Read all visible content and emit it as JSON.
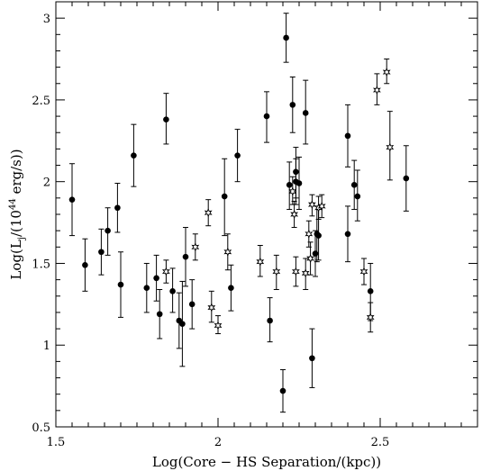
{
  "chart_data": {
    "type": "scatter",
    "xlabel": "Log(Core − HS Separation/(kpc))",
    "ylabel_prefix": "Log(L",
    "ylabel_sub": "j",
    "ylabel_mid": "/(10",
    "ylabel_sup": "44",
    "ylabel_suffix": " erg/s))",
    "xlim": [
      1.5,
      2.8
    ],
    "ylim": [
      0.5,
      3.1
    ],
    "x_ticks": [
      1.5,
      2,
      2.5
    ],
    "x_tick_labels": [
      "1.5",
      "2",
      "2.5"
    ],
    "y_ticks": [
      0.5,
      1,
      1.5,
      2,
      2.5,
      3
    ],
    "y_tick_labels": [
      "0.5",
      "1",
      "1.5",
      "2",
      "2.5",
      "3"
    ],
    "series": [
      {
        "marker": "filled-circle",
        "points": [
          {
            "x": 1.55,
            "y": 1.89,
            "lo": 1.67,
            "hi": 2.11
          },
          {
            "x": 1.59,
            "y": 1.49,
            "lo": 1.33,
            "hi": 1.65
          },
          {
            "x": 1.64,
            "y": 1.57,
            "lo": 1.43,
            "hi": 1.71
          },
          {
            "x": 1.66,
            "y": 1.7,
            "lo": 1.55,
            "hi": 1.84
          },
          {
            "x": 1.69,
            "y": 1.84,
            "lo": 1.69,
            "hi": 1.99
          },
          {
            "x": 1.7,
            "y": 1.37,
            "lo": 1.17,
            "hi": 1.57
          },
          {
            "x": 1.74,
            "y": 2.16,
            "lo": 1.97,
            "hi": 2.35
          },
          {
            "x": 1.78,
            "y": 1.35,
            "lo": 1.2,
            "hi": 1.5
          },
          {
            "x": 1.81,
            "y": 1.41,
            "lo": 1.27,
            "hi": 1.55
          },
          {
            "x": 1.82,
            "y": 1.19,
            "lo": 1.04,
            "hi": 1.34
          },
          {
            "x": 1.84,
            "y": 2.38,
            "lo": 2.23,
            "hi": 2.54
          },
          {
            "x": 1.86,
            "y": 1.33,
            "lo": 1.2,
            "hi": 1.47
          },
          {
            "x": 1.88,
            "y": 1.15,
            "lo": 0.98,
            "hi": 1.32
          },
          {
            "x": 1.89,
            "y": 1.13,
            "lo": 0.87,
            "hi": 1.39
          },
          {
            "x": 1.9,
            "y": 1.54,
            "lo": 1.36,
            "hi": 1.72
          },
          {
            "x": 1.92,
            "y": 1.25,
            "lo": 1.1,
            "hi": 1.4
          },
          {
            "x": 2.02,
            "y": 1.91,
            "lo": 1.67,
            "hi": 2.14
          },
          {
            "x": 2.04,
            "y": 1.35,
            "lo": 1.21,
            "hi": 1.49
          },
          {
            "x": 2.06,
            "y": 2.16,
            "lo": 2.0,
            "hi": 2.32
          },
          {
            "x": 2.15,
            "y": 2.4,
            "lo": 2.24,
            "hi": 2.55
          },
          {
            "x": 2.16,
            "y": 1.15,
            "lo": 1.02,
            "hi": 1.29
          },
          {
            "x": 2.2,
            "y": 0.72,
            "lo": 0.59,
            "hi": 0.85
          },
          {
            "x": 2.21,
            "y": 2.88,
            "lo": 2.73,
            "hi": 3.03
          },
          {
            "x": 2.22,
            "y": 1.98,
            "lo": 1.83,
            "hi": 2.12
          },
          {
            "x": 2.23,
            "y": 2.47,
            "lo": 2.3,
            "hi": 2.64
          },
          {
            "x": 2.24,
            "y": 2.06,
            "lo": 1.9,
            "hi": 2.21
          },
          {
            "x": 2.24,
            "y": 2.0,
            "lo": 1.86,
            "hi": 2.14
          },
          {
            "x": 2.25,
            "y": 1.99,
            "lo": 1.83,
            "hi": 2.15
          },
          {
            "x": 2.27,
            "y": 2.42,
            "lo": 2.23,
            "hi": 2.62
          },
          {
            "x": 2.29,
            "y": 0.92,
            "lo": 0.74,
            "hi": 1.1
          },
          {
            "x": 2.3,
            "y": 1.56,
            "lo": 1.42,
            "hi": 1.7
          },
          {
            "x": 2.305,
            "y": 1.68,
            "lo": 1.51,
            "hi": 1.85
          },
          {
            "x": 2.31,
            "y": 1.67,
            "lo": 1.52,
            "hi": 1.83
          },
          {
            "x": 2.4,
            "y": 2.28,
            "lo": 2.09,
            "hi": 2.47
          },
          {
            "x": 2.4,
            "y": 1.68,
            "lo": 1.51,
            "hi": 1.85
          },
          {
            "x": 2.42,
            "y": 1.98,
            "lo": 1.83,
            "hi": 2.13
          },
          {
            "x": 2.43,
            "y": 1.91,
            "lo": 1.76,
            "hi": 2.07
          },
          {
            "x": 2.47,
            "y": 1.33,
            "lo": 1.15,
            "hi": 1.5
          },
          {
            "x": 2.58,
            "y": 2.02,
            "lo": 1.82,
            "hi": 2.22
          }
        ]
      },
      {
        "marker": "open-star",
        "points": [
          {
            "x": 1.84,
            "y": 1.45,
            "lo": 1.38,
            "hi": 1.52
          },
          {
            "x": 1.93,
            "y": 1.6,
            "lo": 1.52,
            "hi": 1.68
          },
          {
            "x": 1.97,
            "y": 1.81,
            "lo": 1.73,
            "hi": 1.89
          },
          {
            "x": 1.98,
            "y": 1.23,
            "lo": 1.14,
            "hi": 1.33
          },
          {
            "x": 2.0,
            "y": 1.12,
            "lo": 1.07,
            "hi": 1.18
          },
          {
            "x": 2.03,
            "y": 1.57,
            "lo": 1.46,
            "hi": 1.68
          },
          {
            "x": 2.13,
            "y": 1.51,
            "lo": 1.42,
            "hi": 1.61
          },
          {
            "x": 2.18,
            "y": 1.45,
            "lo": 1.34,
            "hi": 1.55
          },
          {
            "x": 2.23,
            "y": 1.94,
            "lo": 1.86,
            "hi": 2.03
          },
          {
            "x": 2.235,
            "y": 1.8,
            "lo": 1.72,
            "hi": 1.88
          },
          {
            "x": 2.24,
            "y": 1.45,
            "lo": 1.36,
            "hi": 1.54
          },
          {
            "x": 2.27,
            "y": 1.44,
            "lo": 1.34,
            "hi": 1.53
          },
          {
            "x": 2.28,
            "y": 1.68,
            "lo": 1.6,
            "hi": 1.76
          },
          {
            "x": 2.285,
            "y": 1.53,
            "lo": 1.43,
            "hi": 1.63
          },
          {
            "x": 2.29,
            "y": 1.86,
            "lo": 1.79,
            "hi": 1.92
          },
          {
            "x": 2.31,
            "y": 1.84,
            "lo": 1.77,
            "hi": 1.91
          },
          {
            "x": 2.32,
            "y": 1.85,
            "lo": 1.78,
            "hi": 1.92
          },
          {
            "x": 2.45,
            "y": 1.45,
            "lo": 1.37,
            "hi": 1.53
          },
          {
            "x": 2.47,
            "y": 1.17,
            "lo": 1.08,
            "hi": 1.26
          },
          {
            "x": 2.49,
            "y": 2.56,
            "lo": 2.47,
            "hi": 2.66
          },
          {
            "x": 2.52,
            "y": 2.67,
            "lo": 2.6,
            "hi": 2.75
          },
          {
            "x": 2.53,
            "y": 2.21,
            "lo": 2.01,
            "hi": 2.43
          }
        ]
      }
    ]
  }
}
